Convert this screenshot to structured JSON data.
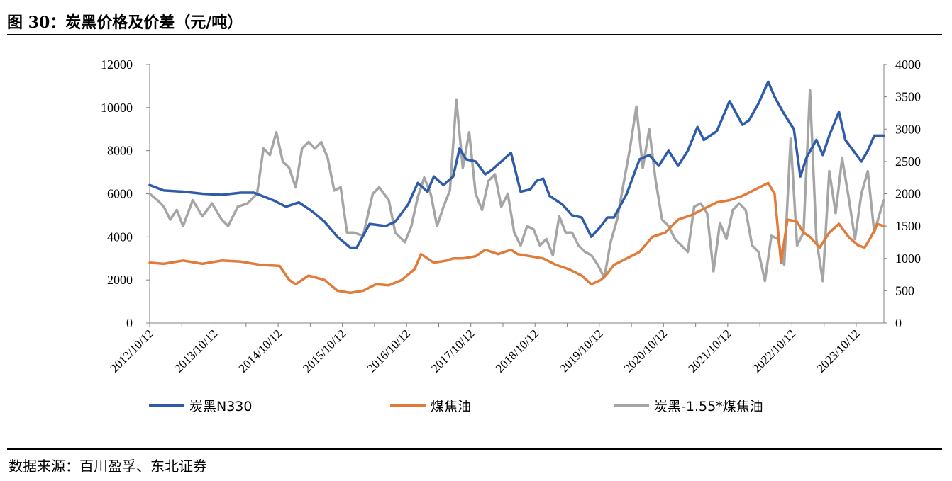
{
  "figure": {
    "title": "图 30：炭黑价格及价差（元/吨）",
    "source": "数据来源：百川盈孚、东北证券"
  },
  "chart_data": {
    "type": "line",
    "x_tick_labels": [
      "2012/10/12",
      "2013/10/12",
      "2014/10/12",
      "2015/10/12",
      "2016/10/12",
      "2017/10/12",
      "2018/10/12",
      "2019/10/12",
      "2020/10/12",
      "2021/10/12",
      "2022/10/12",
      "2023/10/12"
    ],
    "x_range": [
      2012.78,
      2024.2
    ],
    "y_left": {
      "ylim": [
        0,
        12000
      ],
      "ticks": [
        0,
        2000,
        4000,
        6000,
        8000,
        10000,
        12000
      ]
    },
    "y_right": {
      "ylim": [
        0,
        4000
      ],
      "ticks": [
        0,
        500,
        1000,
        1500,
        2000,
        2500,
        3000,
        3500,
        4000
      ]
    },
    "grid": false,
    "legend": "bottom",
    "series": [
      {
        "name": "炭黑N330",
        "axis": "left",
        "color": "#2E5CA8",
        "x": [
          2012.78,
          2013.0,
          2013.3,
          2013.6,
          2013.9,
          2014.2,
          2014.4,
          2014.7,
          2014.9,
          2015.1,
          2015.3,
          2015.5,
          2015.7,
          2015.9,
          2016.0,
          2016.2,
          2016.45,
          2016.6,
          2016.8,
          2016.95,
          2017.1,
          2017.2,
          2017.35,
          2017.5,
          2017.6,
          2017.7,
          2017.85,
          2018.0,
          2018.1,
          2018.25,
          2018.4,
          2018.55,
          2018.7,
          2018.8,
          2018.9,
          2019.0,
          2019.2,
          2019.35,
          2019.5,
          2019.65,
          2019.8,
          2019.9,
          2020.0,
          2020.2,
          2020.4,
          2020.55,
          2020.7,
          2020.85,
          2021.0,
          2021.15,
          2021.3,
          2021.4,
          2021.6,
          2021.8,
          2022.0,
          2022.1,
          2022.25,
          2022.4,
          2022.5,
          2022.65,
          2022.8,
          2022.9,
          2023.0,
          2023.15,
          2023.25,
          2023.35,
          2023.5,
          2023.6,
          2023.75,
          2023.85,
          2023.95,
          2024.05,
          2024.2
        ],
        "values": [
          6400,
          6150,
          6100,
          6000,
          5950,
          6050,
          6050,
          5700,
          5400,
          5600,
          5200,
          4700,
          4000,
          3500,
          3500,
          4600,
          4500,
          4700,
          5500,
          6500,
          6100,
          6800,
          6400,
          6800,
          8100,
          7600,
          7500,
          6900,
          7100,
          7500,
          7900,
          6100,
          6200,
          6600,
          6700,
          5900,
          5500,
          5000,
          4900,
          4000,
          4500,
          4900,
          4900,
          6000,
          7600,
          7800,
          7300,
          8000,
          7300,
          8000,
          9100,
          8500,
          8900,
          10300,
          9200,
          9400,
          10200,
          11200,
          10500,
          9700,
          9000,
          6800,
          7700,
          8500,
          7800,
          8700,
          9800,
          8500,
          7900,
          7500,
          8000,
          8700,
          8700
        ]
      },
      {
        "name": "煤焦油",
        "axis": "left",
        "color": "#E07B39",
        "x": [
          2012.78,
          2013.0,
          2013.3,
          2013.6,
          2013.9,
          2014.2,
          2014.5,
          2014.8,
          2014.95,
          2015.05,
          2015.25,
          2015.5,
          2015.7,
          2015.9,
          2016.1,
          2016.3,
          2016.5,
          2016.7,
          2016.9,
          2017.0,
          2017.2,
          2017.4,
          2017.5,
          2017.65,
          2017.85,
          2018.0,
          2018.2,
          2018.4,
          2018.5,
          2018.7,
          2018.9,
          2019.1,
          2019.3,
          2019.5,
          2019.65,
          2019.8,
          2019.9,
          2020.0,
          2020.2,
          2020.4,
          2020.6,
          2020.8,
          2021.0,
          2021.2,
          2021.4,
          2021.6,
          2021.8,
          2022.0,
          2022.2,
          2022.4,
          2022.5,
          2022.6,
          2022.7,
          2022.85,
          2022.95,
          2023.05,
          2023.2,
          2023.35,
          2023.5,
          2023.65,
          2023.8,
          2023.9,
          2024.0,
          2024.1,
          2024.2
        ],
        "values": [
          2800,
          2750,
          2900,
          2750,
          2900,
          2850,
          2700,
          2650,
          2000,
          1800,
          2200,
          2000,
          1500,
          1400,
          1500,
          1800,
          1750,
          2000,
          2500,
          3200,
          2800,
          2900,
          3000,
          3000,
          3100,
          3400,
          3200,
          3400,
          3200,
          3100,
          3000,
          2700,
          2500,
          2200,
          1800,
          2000,
          2300,
          2700,
          3000,
          3300,
          4000,
          4200,
          4800,
          5000,
          5300,
          5600,
          5700,
          5900,
          6200,
          6500,
          6000,
          2800,
          4800,
          4700,
          4200,
          4000,
          3500,
          4200,
          4600,
          4000,
          3600,
          3500,
          4000,
          4600,
          4500
        ]
      },
      {
        "name": "炭黑-1.55*煤焦油",
        "axis": "right",
        "color": "#A5A5A5",
        "x": [
          2012.78,
          2012.9,
          2013.0,
          2013.1,
          2013.2,
          2013.3,
          2013.45,
          2013.6,
          2013.75,
          2013.9,
          2014.0,
          2014.15,
          2014.3,
          2014.45,
          2014.55,
          2014.65,
          2014.75,
          2014.85,
          2014.95,
          2015.05,
          2015.15,
          2015.25,
          2015.35,
          2015.45,
          2015.55,
          2015.65,
          2015.75,
          2015.85,
          2015.95,
          2016.1,
          2016.25,
          2016.35,
          2016.5,
          2016.6,
          2016.75,
          2016.85,
          2016.95,
          2017.05,
          2017.15,
          2017.25,
          2017.35,
          2017.45,
          2017.55,
          2017.65,
          2017.75,
          2017.85,
          2017.95,
          2018.05,
          2018.15,
          2018.25,
          2018.35,
          2018.45,
          2018.55,
          2018.65,
          2018.75,
          2018.85,
          2018.95,
          2019.05,
          2019.15,
          2019.25,
          2019.35,
          2019.45,
          2019.55,
          2019.65,
          2019.75,
          2019.85,
          2019.95,
          2020.05,
          2020.15,
          2020.25,
          2020.35,
          2020.45,
          2020.55,
          2020.65,
          2020.75,
          2020.85,
          2020.95,
          2021.05,
          2021.15,
          2021.25,
          2021.35,
          2021.45,
          2021.55,
          2021.65,
          2021.75,
          2021.85,
          2021.95,
          2022.05,
          2022.15,
          2022.25,
          2022.35,
          2022.45,
          2022.55,
          2022.65,
          2022.75,
          2022.85,
          2022.95,
          2023.05,
          2023.15,
          2023.25,
          2023.35,
          2023.45,
          2023.55,
          2023.65,
          2023.75,
          2023.85,
          2023.95,
          2024.05,
          2024.15,
          2024.2
        ],
        "values": [
          2000,
          1900,
          1800,
          1600,
          1750,
          1500,
          1900,
          1650,
          1850,
          1600,
          1500,
          1800,
          1850,
          2000,
          2700,
          2600,
          2950,
          2500,
          2400,
          2100,
          2700,
          2800,
          2700,
          2800,
          2550,
          2050,
          2100,
          1400,
          1400,
          1350,
          2000,
          2100,
          1900,
          1400,
          1250,
          1500,
          1950,
          2250,
          2000,
          1500,
          1800,
          2050,
          3450,
          2400,
          2950,
          2000,
          1750,
          2200,
          2300,
          1800,
          2000,
          1400,
          1200,
          1500,
          1450,
          1200,
          1300,
          1050,
          1650,
          1400,
          1400,
          1200,
          1100,
          1050,
          900,
          700,
          1250,
          1600,
          2150,
          2700,
          3350,
          2400,
          3000,
          2200,
          1600,
          1500,
          1300,
          1200,
          1100,
          1800,
          1850,
          1700,
          800,
          1550,
          1300,
          1750,
          1850,
          1750,
          1200,
          1100,
          650,
          1350,
          1300,
          900,
          2850,
          1200,
          1400,
          3600,
          1300,
          650,
          2350,
          1700,
          2550,
          1950,
          1300,
          2000,
          2350,
          1400,
          1750,
          1900
        ]
      }
    ]
  }
}
